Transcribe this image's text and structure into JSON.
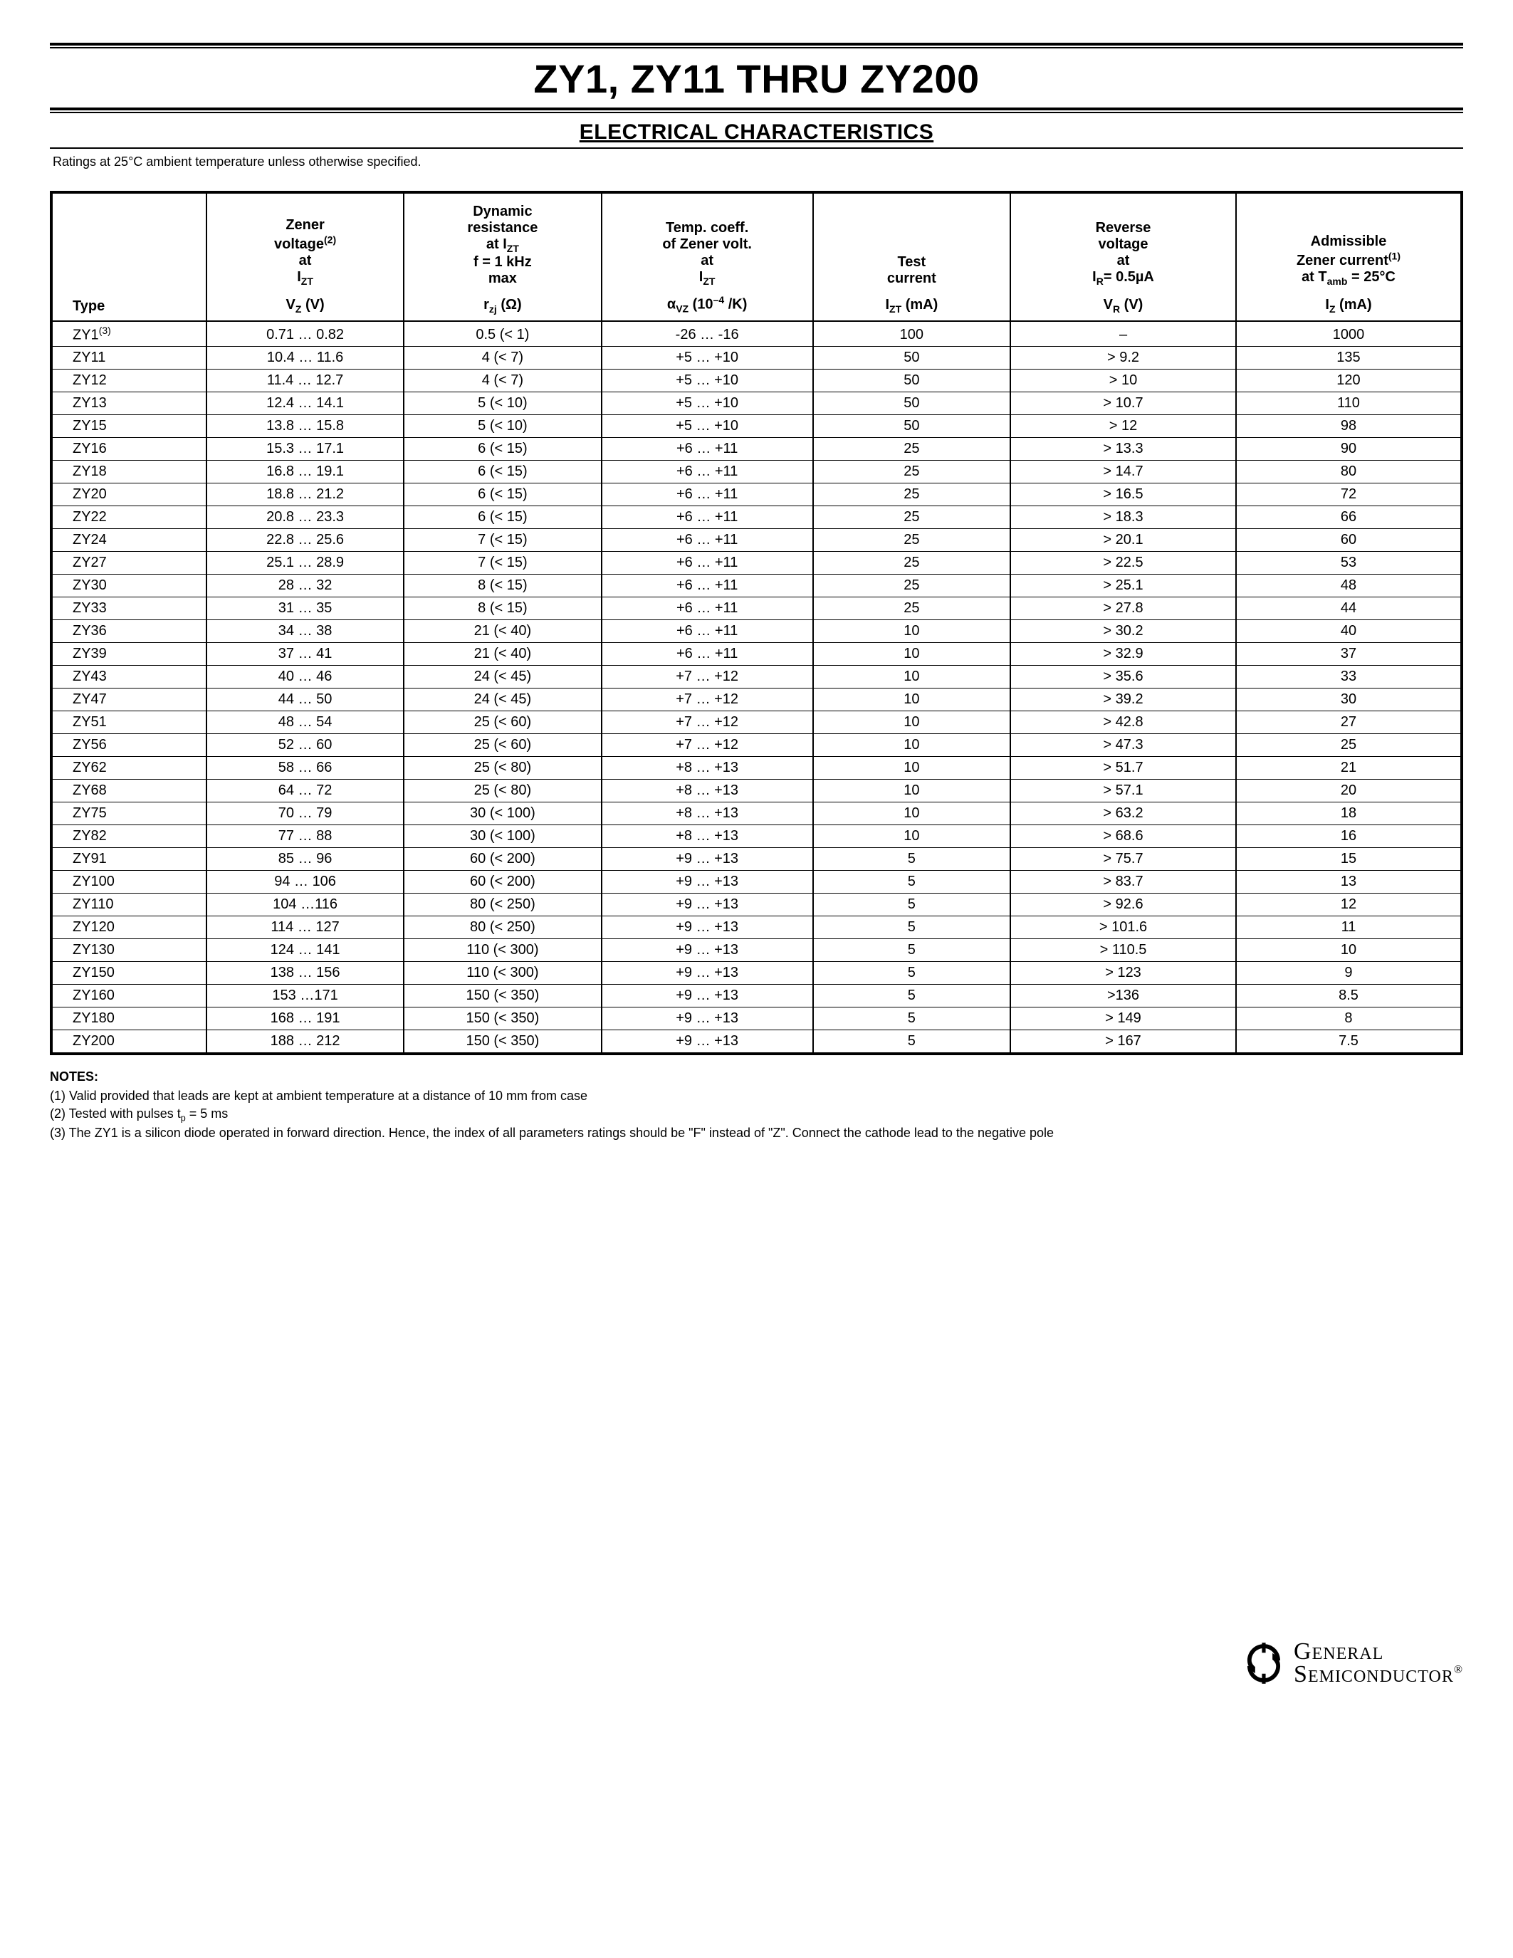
{
  "title": "ZY1, ZY11 THRU ZY200",
  "section_title": "ELECTRICAL CHARACTERISTICS",
  "ratings_note": "Ratings at 25°C ambient temperature unless otherwise specified.",
  "columns": [
    {
      "desc_html": "Type",
      "unit_html": ""
    },
    {
      "desc_html": "Zener<br>voltage<span class='sup'>(2)</span><br>at<br>I<span class='sub'>ZT</span>",
      "unit_html": "V<span class='sub'>Z</span> (V)"
    },
    {
      "desc_html": "Dynamic<br>resistance<br>at I<span class='sub'>ZT</span><br>f = 1 kHz<br>max",
      "unit_html": "r<span class='sub'>zj</span> (Ω)"
    },
    {
      "desc_html": "Temp. coeff.<br>of Zener volt.<br>at<br>I<span class='sub'>ZT</span>",
      "unit_html": "α<span class='sub'>VZ</span> (10<span class='sup'>–4</span> /K)"
    },
    {
      "desc_html": "Test<br>current",
      "unit_html": "I<span class='sub'>ZT</span> (mA)"
    },
    {
      "desc_html": "Reverse<br>voltage<br>at<br>I<span class='sub'>R</span>= 0.5µA",
      "unit_html": "V<span class='sub'>R</span> (V)"
    },
    {
      "desc_html": "Admissible<br>Zener current<span class='sup'>(1)</span><br>at T<span class='sub'>amb</span> = 25°C",
      "unit_html": "I<span class='sub'>Z</span> (mA)"
    }
  ],
  "rows": [
    {
      "type_html": "ZY1<span class='sup'>(3)</span>",
      "cells": [
        "0.71 … 0.82",
        "0.5 (< 1)",
        "-26 … -16",
        "100",
        "–",
        "1000"
      ]
    },
    {
      "type_html": "ZY11",
      "cells": [
        "10.4 … 11.6",
        "4 (< 7)",
        "+5 … +10",
        "50",
        "> 9.2",
        "135"
      ]
    },
    {
      "type_html": "ZY12",
      "cells": [
        "11.4 … 12.7",
        "4 (< 7)",
        "+5 … +10",
        "50",
        "> 10",
        "120"
      ]
    },
    {
      "type_html": "ZY13",
      "cells": [
        "12.4 … 14.1",
        "5 (< 10)",
        "+5 … +10",
        "50",
        "> 10.7",
        "110"
      ]
    },
    {
      "type_html": "ZY15",
      "cells": [
        "13.8 … 15.8",
        "5 (< 10)",
        "+5 … +10",
        "50",
        "> 12",
        "98"
      ]
    },
    {
      "type_html": "ZY16",
      "cells": [
        "15.3 … 17.1",
        "6 (< 15)",
        "+6 … +11",
        "25",
        "> 13.3",
        "90"
      ]
    },
    {
      "type_html": "ZY18",
      "cells": [
        "16.8 … 19.1",
        "6 (< 15)",
        "+6 … +11",
        "25",
        "> 14.7",
        "80"
      ]
    },
    {
      "type_html": "ZY20",
      "cells": [
        "18.8 … 21.2",
        "6 (< 15)",
        "+6 … +11",
        "25",
        "> 16.5",
        "72"
      ]
    },
    {
      "type_html": "ZY22",
      "cells": [
        "20.8 … 23.3",
        "6 (< 15)",
        "+6 … +11",
        "25",
        "> 18.3",
        "66"
      ]
    },
    {
      "type_html": "ZY24",
      "cells": [
        "22.8 … 25.6",
        "7 (< 15)",
        "+6 … +11",
        "25",
        "> 20.1",
        "60"
      ]
    },
    {
      "type_html": "ZY27",
      "cells": [
        "25.1 … 28.9",
        "7 (< 15)",
        "+6 … +11",
        "25",
        "> 22.5",
        "53"
      ]
    },
    {
      "type_html": "ZY30",
      "cells": [
        "28 … 32",
        "8 (< 15)",
        "+6 … +11",
        "25",
        "> 25.1",
        "48"
      ]
    },
    {
      "type_html": "ZY33",
      "cells": [
        "31 … 35",
        "8 (< 15)",
        "+6 … +11",
        "25",
        "> 27.8",
        "44"
      ]
    },
    {
      "type_html": "ZY36",
      "cells": [
        "34 … 38",
        "21 (< 40)",
        "+6 … +11",
        "10",
        "> 30.2",
        "40"
      ]
    },
    {
      "type_html": "ZY39",
      "cells": [
        "37 … 41",
        "21 (< 40)",
        "+6 … +11",
        "10",
        "> 32.9",
        "37"
      ]
    },
    {
      "type_html": "ZY43",
      "cells": [
        "40 … 46",
        "24 (< 45)",
        "+7 … +12",
        "10",
        "> 35.6",
        "33"
      ]
    },
    {
      "type_html": "ZY47",
      "cells": [
        "44 … 50",
        "24 (< 45)",
        "+7 … +12",
        "10",
        "> 39.2",
        "30"
      ]
    },
    {
      "type_html": "ZY51",
      "cells": [
        "48 … 54",
        "25 (< 60)",
        "+7 … +12",
        "10",
        "> 42.8",
        "27"
      ]
    },
    {
      "type_html": "ZY56",
      "cells": [
        "52 … 60",
        "25 (< 60)",
        "+7 … +12",
        "10",
        "> 47.3",
        "25"
      ]
    },
    {
      "type_html": "ZY62",
      "cells": [
        "58 … 66",
        "25 (< 80)",
        "+8 … +13",
        "10",
        "> 51.7",
        "21"
      ]
    },
    {
      "type_html": "ZY68",
      "cells": [
        "64 … 72",
        "25 (< 80)",
        "+8 … +13",
        "10",
        "> 57.1",
        "20"
      ]
    },
    {
      "type_html": "ZY75",
      "cells": [
        "70 … 79",
        "30 (< 100)",
        "+8 … +13",
        "10",
        "> 63.2",
        "18"
      ]
    },
    {
      "type_html": "ZY82",
      "cells": [
        "77 … 88",
        "30 (< 100)",
        "+8 … +13",
        "10",
        "> 68.6",
        "16"
      ]
    },
    {
      "type_html": "ZY91",
      "cells": [
        "85 … 96",
        "60 (< 200)",
        "+9 … +13",
        "5",
        "> 75.7",
        "15"
      ]
    },
    {
      "type_html": "ZY100",
      "cells": [
        "94 … 106",
        "60 (< 200)",
        "+9 … +13",
        "5",
        "> 83.7",
        "13"
      ]
    },
    {
      "type_html": "ZY110",
      "cells": [
        "104 …116",
        "80 (< 250)",
        "+9 … +13",
        "5",
        "> 92.6",
        "12"
      ]
    },
    {
      "type_html": "ZY120",
      "cells": [
        "114 … 127",
        "80 (< 250)",
        "+9 … +13",
        "5",
        "> 101.6",
        "11"
      ]
    },
    {
      "type_html": "ZY130",
      "cells": [
        "124 … 141",
        "110 (< 300)",
        "+9 … +13",
        "5",
        "> 110.5",
        "10"
      ]
    },
    {
      "type_html": "ZY150",
      "cells": [
        "138 … 156",
        "110 (< 300)",
        "+9 … +13",
        "5",
        "> 123",
        "9"
      ]
    },
    {
      "type_html": "ZY160",
      "cells": [
        "153 …171",
        "150 (< 350)",
        "+9 … +13",
        "5",
        ">136",
        "8.5"
      ]
    },
    {
      "type_html": "ZY180",
      "cells": [
        "168 … 191",
        "150 (< 350)",
        "+9 … +13",
        "5",
        "> 149",
        "8"
      ]
    },
    {
      "type_html": "ZY200",
      "cells": [
        "188 … 212",
        "150 (< 350)",
        "+9 … +13",
        "5",
        "> 167",
        "7.5"
      ]
    }
  ],
  "notes_title": "NOTES:",
  "notes": [
    "(1) Valid provided that leads are kept at ambient temperature at a distance of 10 mm from case",
    "(2) Tested with pulses t<span class='sub'>p</span> = 5 ms",
    "(3) The ZY1 is a silicon diode operated in forward direction. Hence, the index of all parameters ratings should be \"F\" instead of \"Z\". Connect the cathode lead to the negative pole"
  ],
  "footer": {
    "brand_line1": "General",
    "brand_line2": "Semiconductor"
  }
}
